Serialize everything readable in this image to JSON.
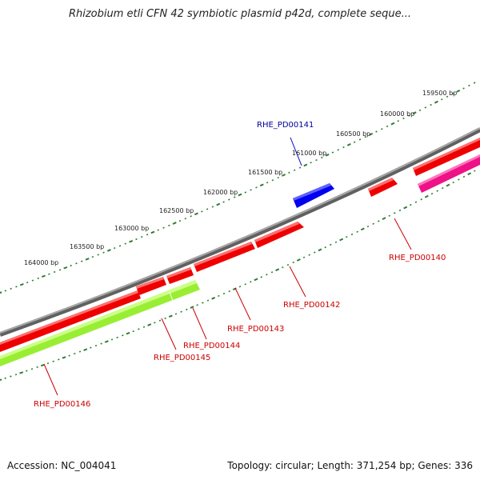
{
  "title": "Rhizobium etli CFN 42 symbiotic plasmid p42d, complete seque...",
  "footer": {
    "accession": "Accession: NC_004041",
    "summary": "Topology: circular; Length: 371,254 bp; Genes: 336"
  },
  "colors": {
    "backbone": "#808080",
    "tick": "#2e7d32",
    "gene_red": "#ee0000",
    "gene_blue": "#0000ee",
    "gene_green": "#99ee33",
    "gene_pink": "#ee1188",
    "label_red": "#cc0000",
    "label_blue": "#000099"
  },
  "outer_ticks": [
    {
      "label": "159500 bp"
    },
    {
      "label": "160000 bp"
    },
    {
      "label": "160500 bp"
    },
    {
      "label": "161000 bp"
    },
    {
      "label": "161500 bp"
    },
    {
      "label": "162000 bp"
    },
    {
      "label": "162500 bp"
    },
    {
      "label": "163000 bp"
    },
    {
      "label": "163500 bp"
    },
    {
      "label": "164000 bp"
    }
  ],
  "genes": [
    {
      "name": "RHE_PD00141",
      "color": "blue"
    },
    {
      "name": "RHE_PD00140",
      "color": "red"
    },
    {
      "name": "RHE_PD00142",
      "color": "red"
    },
    {
      "name": "RHE_PD00143",
      "color": "red"
    },
    {
      "name": "RHE_PD00144",
      "color": "red"
    },
    {
      "name": "RHE_PD00145",
      "color": "red"
    },
    {
      "name": "RHE_PD00146",
      "color": "green"
    }
  ]
}
